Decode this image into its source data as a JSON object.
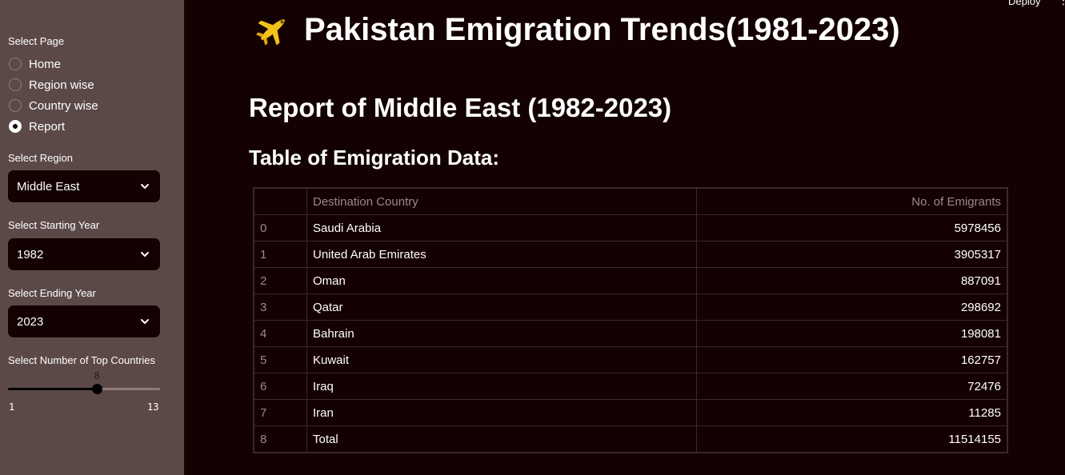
{
  "sidebar": {
    "page_label": "Select Page",
    "pages": [
      {
        "label": "Home",
        "checked": false
      },
      {
        "label": "Region wise",
        "checked": false
      },
      {
        "label": "Country wise",
        "checked": false
      },
      {
        "label": "Report",
        "checked": true
      }
    ],
    "region_label": "Select Region",
    "region_value": "Middle East",
    "start_label": "Select Starting Year",
    "start_value": "1982",
    "end_label": "Select Ending Year",
    "end_value": "2023",
    "slider": {
      "label": "Select Number of Top Countries",
      "value": "8",
      "min": "1",
      "max": "13"
    }
  },
  "header": {
    "deploy_label": "Deploy",
    "menu_icon": "vertical-dots-icon"
  },
  "main": {
    "title": "Pakistan Emigration Trends(1981-2023)",
    "title_icon": "airplane-icon",
    "report_heading": "Report of Middle East (1982-2023)",
    "table_heading": "Table of Emigration Data:",
    "table": {
      "columns": [
        "",
        "Destination Country",
        "No. of Emigrants"
      ],
      "rows": [
        {
          "index": "0",
          "country": "Saudi Arabia",
          "emigrants": "5978456"
        },
        {
          "index": "1",
          "country": "United Arab Emirates",
          "emigrants": "3905317"
        },
        {
          "index": "2",
          "country": "Oman",
          "emigrants": "887091"
        },
        {
          "index": "3",
          "country": "Qatar",
          "emigrants": "298692"
        },
        {
          "index": "4",
          "country": "Bahrain",
          "emigrants": "198081"
        },
        {
          "index": "5",
          "country": "Kuwait",
          "emigrants": "162757"
        },
        {
          "index": "6",
          "country": "Iraq",
          "emigrants": "72476"
        },
        {
          "index": "7",
          "country": "Iran",
          "emigrants": "11285"
        },
        {
          "index": "8",
          "country": "Total",
          "emigrants": "11514155"
        }
      ]
    }
  },
  "colors": {
    "background": "#140102",
    "sidebar": "#5b4948",
    "text": "#ffffff",
    "muted": "#9a8a89"
  }
}
